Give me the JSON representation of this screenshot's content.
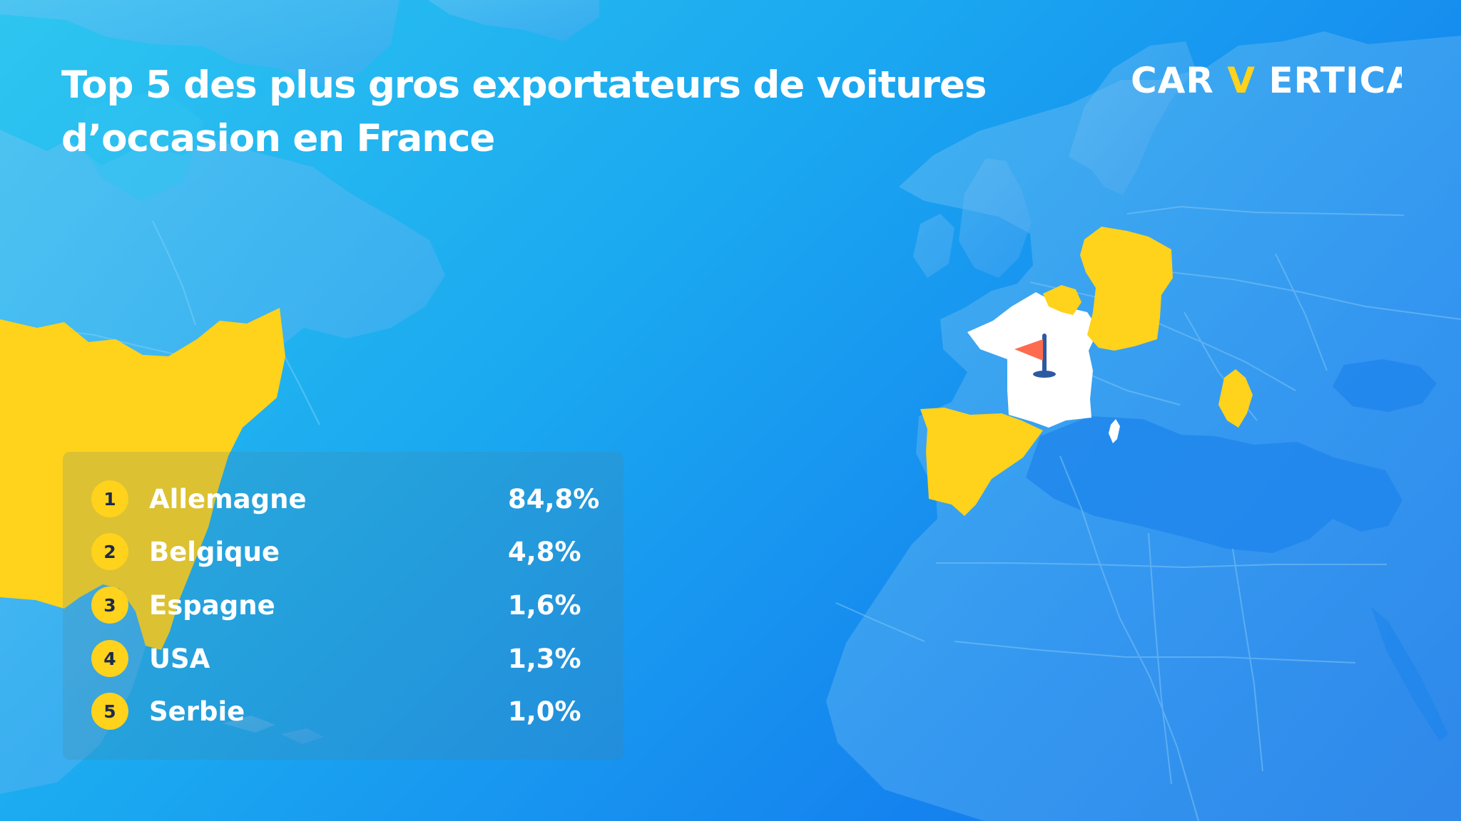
{
  "infographic": {
    "title_line_1": "Top 5 des plus gros exportateurs de voitures",
    "title_line_2": "d’occasion en France",
    "brand": {
      "prefix": "CAR",
      "accent": "V",
      "suffix": "ERTICAL"
    },
    "ranking": [
      {
        "rank": "1",
        "country": "Allemagne",
        "share": "84,8%"
      },
      {
        "rank": "2",
        "country": "Belgique",
        "share": "4,8%"
      },
      {
        "rank": "3",
        "country": "Espagne",
        "share": "1,6%"
      },
      {
        "rank": "4",
        "country": "USA",
        "share": "1,3%"
      },
      {
        "rank": "5",
        "country": "Serbie",
        "share": "1,0%"
      }
    ]
  },
  "map": {
    "destination_icon": "flag-pin-icon",
    "highlight_color": "#ffd21c",
    "destination_color": "#ffffff"
  },
  "colors": {
    "ocean_light": "#2ec6f0",
    "ocean_dark": "#1873e6",
    "land": "#4ea4ef",
    "accent_yellow": "#ffd21c",
    "pin_orange": "#ff6b4e"
  }
}
